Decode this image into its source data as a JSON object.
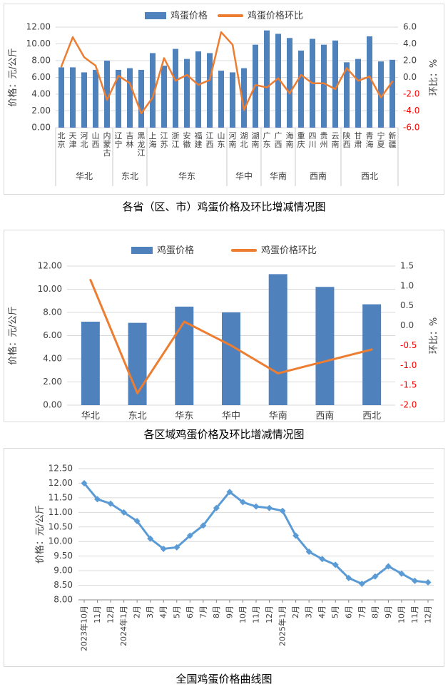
{
  "page": {
    "background": "#ffffff"
  },
  "colors": {
    "bar": "#4F81BD",
    "line": "#ED7D31",
    "curve": "#5B9BD5",
    "grid": "#D9D9D9",
    "axis_text": "#404040",
    "negative_tick": "#FF0000",
    "separator": "#C8C8C8",
    "axis_line": "#898989",
    "panel_border": "#D9D9D9",
    "title_text": "#000000"
  },
  "chart_data": [
    {
      "type": "bar+line",
      "title": "各省（区、市）鸡蛋价格及环比增减情况图",
      "legend_position": "top",
      "grid": true,
      "axes": {
        "left": {
          "min": 0,
          "max": 12,
          "step": 2,
          "title": "价格：元/公斤",
          "format": "0.00"
        },
        "right": {
          "min": -6,
          "max": 6,
          "step": 2,
          "title": "环比：%",
          "format": "0.0"
        }
      },
      "groups": [
        {
          "region": "华北",
          "provinces": [
            "北京",
            "天津",
            "河北",
            "山西",
            "内蒙古"
          ]
        },
        {
          "region": "东北",
          "provinces": [
            "辽宁",
            "吉林",
            "黑龙江"
          ]
        },
        {
          "region": "华东",
          "provinces": [
            "上海",
            "江苏",
            "浙江",
            "安徽",
            "福建",
            "江西",
            "山东"
          ]
        },
        {
          "region": "华中",
          "provinces": [
            "河南",
            "湖北",
            "湖南"
          ]
        },
        {
          "region": "华南",
          "provinces": [
            "广东",
            "广西",
            "海南"
          ]
        },
        {
          "region": "西南",
          "provinces": [
            "重庆",
            "四川",
            "贵州",
            "云南"
          ]
        },
        {
          "region": "西北",
          "provinces": [
            "陕西",
            "甘肃",
            "青海",
            "宁夏",
            "新疆"
          ]
        }
      ],
      "series": [
        {
          "name": "鸡蛋价格",
          "type": "bar",
          "axis": "left",
          "values": [
            7.2,
            7.2,
            6.6,
            6.9,
            8.0,
            6.9,
            7.1,
            6.9,
            8.9,
            7.4,
            9.4,
            8.2,
            9.1,
            8.9,
            6.8,
            6.6,
            7.1,
            9.9,
            11.6,
            11.2,
            10.7,
            9.2,
            10.6,
            9.9,
            10.4,
            7.8,
            8.2,
            10.9,
            7.9,
            8.1
          ]
        },
        {
          "name": "鸡蛋价格环比",
          "type": "line",
          "axis": "right",
          "values": [
            1.3,
            4.8,
            2.4,
            1.4,
            -2.7,
            0.2,
            -0.7,
            -4.3,
            -2.4,
            2.3,
            -0.4,
            0.3,
            -0.9,
            -0.3,
            5.4,
            3.9,
            -3.9,
            -0.9,
            -1.2,
            -0.1,
            -1.9,
            0.3,
            -0.7,
            -0.7,
            -1.4,
            1.1,
            -0.4,
            0.1,
            -2.4,
            -0.5
          ]
        }
      ]
    },
    {
      "type": "bar+line",
      "title": "各区域鸡蛋价格及环比增减情况图",
      "legend_position": "top",
      "grid": true,
      "axes": {
        "left": {
          "min": 0,
          "max": 12,
          "step": 2,
          "title": "价格：元/公斤",
          "format": "0.00"
        },
        "right": {
          "min": -2,
          "max": 1.5,
          "step": 0.5,
          "title": "环比：%",
          "format": "0.0"
        }
      },
      "categories": [
        "华北",
        "东北",
        "华东",
        "华中",
        "华南",
        "西南",
        "西北"
      ],
      "series": [
        {
          "name": "鸡蛋价格",
          "type": "bar",
          "axis": "left",
          "values": [
            7.2,
            7.1,
            8.5,
            8.0,
            11.3,
            10.2,
            8.7
          ]
        },
        {
          "name": "鸡蛋价格环比",
          "type": "line",
          "axis": "right",
          "values": [
            1.15,
            -1.7,
            0.1,
            -0.5,
            -1.2,
            -0.9,
            -0.6
          ]
        }
      ]
    },
    {
      "type": "line",
      "title": "全国鸡蛋价格曲线图",
      "grid": true,
      "marker": "diamond",
      "axes": {
        "left": {
          "min": 8,
          "max": 12.5,
          "step": 0.5,
          "title": "价格：元/公斤",
          "format": "0.00"
        }
      },
      "x": [
        "2023年10月",
        "11月",
        "12月",
        "2024年1月",
        "2月",
        "3月",
        "4月",
        "5月",
        "6月",
        "7月",
        "8月",
        "9月",
        "10月",
        "11月",
        "12月",
        "2025年1月",
        "2月",
        "3月",
        "4月",
        "5月",
        "6月",
        "7月",
        "8月",
        "9月",
        "10月",
        "11月",
        "12月"
      ],
      "series": [
        {
          "name": "全国鸡蛋价格",
          "values": [
            12.0,
            11.45,
            11.3,
            11.0,
            10.7,
            10.1,
            9.75,
            9.8,
            10.2,
            10.55,
            11.15,
            11.7,
            11.35,
            11.2,
            11.15,
            11.05,
            10.2,
            9.65,
            9.4,
            9.2,
            8.75,
            8.55,
            8.8,
            9.15,
            8.9,
            8.65,
            8.6
          ]
        }
      ]
    }
  ]
}
